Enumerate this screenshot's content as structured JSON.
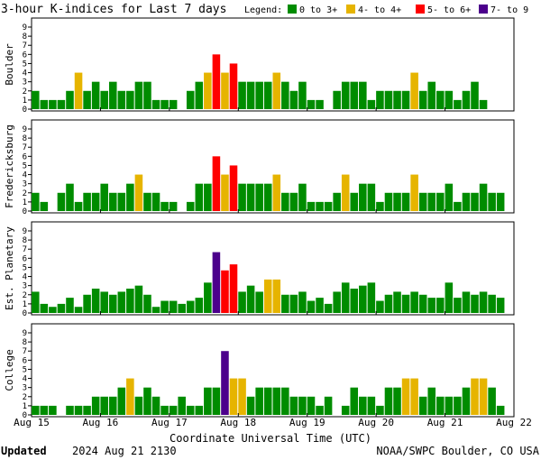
{
  "chart_data": {
    "type": "bar",
    "title": "3-hour K-indices for Last 7 days",
    "legend": {
      "label": "Legend:",
      "items": [
        {
          "label": "0 to 3+",
          "color": "#008c00"
        },
        {
          "label": "4- to 4+",
          "color": "#e6b400"
        },
        {
          "label": "5- to 6+",
          "color": "#ff0000"
        },
        {
          "label": "7- to 9",
          "color": "#4c008c"
        }
      ],
      "placement": "top-right"
    },
    "ylim": [
      0,
      9
    ],
    "yticks": [
      "0",
      "1",
      "2",
      "3",
      "4",
      "5",
      "6",
      "7",
      "8",
      "9"
    ],
    "grid": false,
    "xlabel": "Coordinate Universal Time (UTC)",
    "x_ticks": [
      "Aug 15",
      "Aug 16",
      "Aug 17",
      "Aug 18",
      "Aug 19",
      "Aug 20",
      "Aug 21",
      "Aug 22"
    ],
    "interval_hours": 3,
    "panels": [
      {
        "name": "Boulder",
        "values": [
          2,
          1,
          1,
          1,
          2,
          4,
          2,
          3,
          2,
          3,
          2,
          2,
          3,
          3,
          1,
          1,
          1,
          0,
          2,
          3,
          4,
          6,
          4,
          5,
          3,
          3,
          3,
          3,
          4,
          3,
          2,
          3,
          1,
          1,
          0,
          2,
          3,
          3,
          3,
          1,
          2,
          2,
          2,
          2,
          4,
          2,
          3,
          2,
          2,
          1,
          2,
          3,
          1,
          0
        ]
      },
      {
        "name": "Fredericksburg",
        "values": [
          2,
          1,
          0,
          2,
          3,
          1,
          2,
          2,
          3,
          2,
          2,
          3,
          4,
          2,
          2,
          1,
          1,
          0,
          1,
          3,
          3,
          6,
          4,
          5,
          3,
          3,
          3,
          3,
          4,
          2,
          2,
          3,
          1,
          1,
          1,
          2,
          4,
          2,
          3,
          3,
          1,
          2,
          2,
          2,
          4,
          2,
          2,
          2,
          3,
          1,
          2,
          2,
          3,
          2,
          2,
          0
        ]
      },
      {
        "name": "Est. Planetary",
        "values": [
          2.33,
          1,
          0.67,
          1,
          1.67,
          0.67,
          2,
          2.67,
          2.33,
          2,
          2.33,
          2.67,
          3,
          2,
          0.67,
          1.33,
          1.33,
          1,
          1.33,
          1.67,
          3.33,
          6.67,
          4.67,
          5.33,
          2.33,
          3,
          2.33,
          3.67,
          3.67,
          2,
          2,
          2.33,
          1.33,
          1.67,
          1,
          2.33,
          3.33,
          2.67,
          3,
          3.33,
          1.33,
          2,
          2.33,
          2,
          2.33,
          2,
          1.67,
          1.67,
          3.33,
          1.67,
          2.33,
          2,
          2.33,
          2,
          1.67
        ]
      },
      {
        "name": "College",
        "values": [
          1,
          1,
          1,
          0,
          1,
          1,
          1,
          2,
          2,
          2,
          3,
          4,
          2,
          3,
          2,
          1,
          1,
          2,
          1,
          1,
          3,
          3,
          7,
          4,
          4,
          2,
          3,
          3,
          3,
          3,
          2,
          2,
          2,
          1,
          2,
          0,
          1,
          3,
          2,
          2,
          1,
          3,
          3,
          4,
          4,
          2,
          3,
          2,
          2,
          2,
          3,
          4,
          4,
          3,
          1,
          0
        ]
      }
    ]
  },
  "footer": {
    "updated_label": "Updated",
    "updated_value": "2024 Aug 21 2130",
    "source": "NOAA/SWPC Boulder, CO USA"
  }
}
